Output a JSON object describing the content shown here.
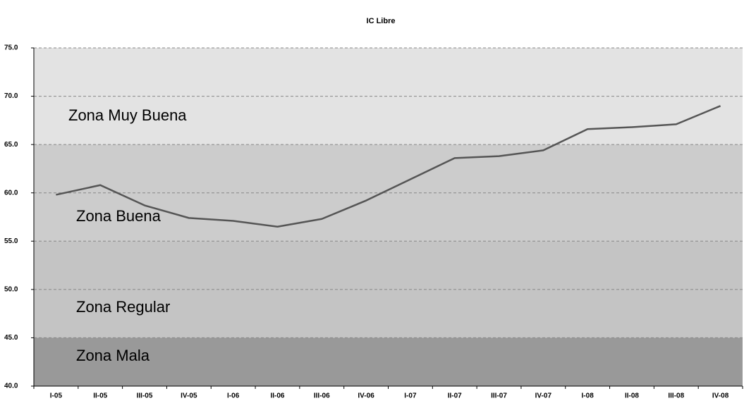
{
  "chart_data": {
    "type": "line",
    "title": "IC Libre",
    "categories": [
      "I-05",
      "II-05",
      "III-05",
      "IV-05",
      "I-06",
      "II-06",
      "III-06",
      "IV-06",
      "I-07",
      "II-07",
      "III-07",
      "IV-07",
      "I-08",
      "II-08",
      "III-08",
      "IV-08"
    ],
    "series": [
      {
        "color": "#555555",
        "values": [
          59.8,
          60.8,
          58.7,
          57.4,
          57.1,
          56.5,
          57.3,
          59.2,
          61.4,
          63.6,
          63.8,
          64.4,
          66.6,
          66.8,
          67.1,
          69.0
        ]
      }
    ],
    "bands": [
      {
        "label": "Zona Muy Buena",
        "from": 65,
        "to": 75,
        "color": "#e3e3e3"
      },
      {
        "label": "Zona Buena",
        "from": 55,
        "to": 65,
        "color": "#cccccc"
      },
      {
        "label": "Zona Regular",
        "from": 45,
        "to": 55,
        "color": "#c4c4c4"
      },
      {
        "label": "Zona Mala",
        "from": 40,
        "to": 45,
        "color": "#999999"
      }
    ],
    "ylim": [
      40,
      75
    ],
    "yticks": [
      {
        "value": 40,
        "label": "40.0"
      },
      {
        "value": 45,
        "label": "45.0"
      },
      {
        "value": 50,
        "label": "50.0"
      },
      {
        "value": 55,
        "label": "55.0"
      },
      {
        "value": 60,
        "label": "60.0"
      },
      {
        "value": 65,
        "label": "65.0"
      },
      {
        "value": 70,
        "label": "70.0"
      },
      {
        "value": 75,
        "label": "75.0"
      }
    ],
    "grid": true
  }
}
